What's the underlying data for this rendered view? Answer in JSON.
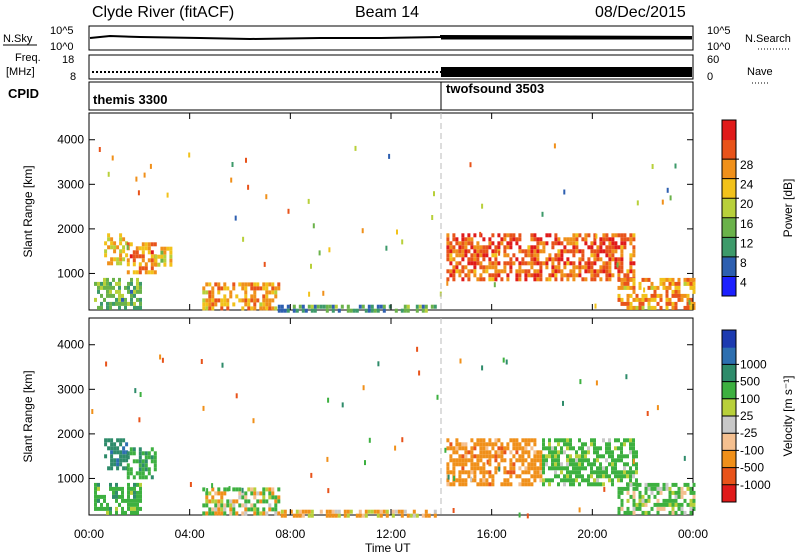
{
  "header": {
    "station": "Clyde River (fitACF)",
    "beam": "Beam 14",
    "date": "08/Dec/2015"
  },
  "status_panels": {
    "nsky_label": "N.Sky",
    "nsearch_label": "N.Search",
    "noise_ticks": [
      "10^5",
      "10^0"
    ],
    "freq_label": "Freq.",
    "freq_unit": "[MHz]",
    "freq_ticks": [
      "18",
      "8"
    ],
    "nave_label": "Nave",
    "nave_ticks": [
      "60",
      "0"
    ],
    "cpid_label": "CPID",
    "cpid_segments": [
      {
        "name": "themis 3300",
        "start_hour": 0,
        "end_hour": 14.0
      },
      {
        "name": "twofsound 3503",
        "start_hour": 14.0,
        "end_hour": 24
      }
    ]
  },
  "colors": {
    "power_scale": [
      "#1c20ff",
      "#2d5fb0",
      "#3d9a6a",
      "#6ab24a",
      "#b8d03a",
      "#f2c21a",
      "#f0901a",
      "#e8531a",
      "#e01a1a"
    ],
    "velocity_scale": [
      "#e01a1a",
      "#e8531a",
      "#f0901a",
      "#f5c090",
      "#c8c8c8",
      "#b8d03a",
      "#3db040",
      "#2e8b6a",
      "#2d6fb0",
      "#1c3ab0"
    ]
  },
  "chart_data": [
    {
      "type": "heatmap",
      "title": "Power",
      "ylabel": "Slant Range [km]",
      "colorbar_label": "Power [dB]",
      "colorbar_ticks": [
        "4",
        "8",
        "12",
        "16",
        "20",
        "24",
        "28"
      ],
      "colorbar_range": [
        0,
        32
      ],
      "y_ticks": [
        "1000",
        "2000",
        "3000",
        "4000"
      ],
      "ylim": [
        180,
        4600
      ],
      "x_ticks": [
        "00:00",
        "04:00",
        "08:00",
        "12:00",
        "16:00",
        "20:00",
        "00:00"
      ],
      "xlim": [
        0,
        24
      ],
      "regions": [
        {
          "t": [
            0.2,
            2.0
          ],
          "r": [
            200,
            900
          ],
          "v": 12
        },
        {
          "t": [
            0.6,
            1.5
          ],
          "r": [
            1200,
            1900
          ],
          "v": 20
        },
        {
          "t": [
            1.5,
            2.6
          ],
          "r": [
            1000,
            1700
          ],
          "v": 24
        },
        {
          "t": [
            2.6,
            3.3
          ],
          "r": [
            1200,
            1600
          ],
          "v": 18
        },
        {
          "t": [
            4.5,
            7.5
          ],
          "r": [
            200,
            800
          ],
          "v": 22
        },
        {
          "t": [
            7.5,
            13.8
          ],
          "r": [
            200,
            300
          ],
          "v": 10
        },
        {
          "t": [
            14.2,
            21.7
          ],
          "r": [
            900,
            1900
          ],
          "v": 26
        },
        {
          "t": [
            21.0,
            24.0
          ],
          "r": [
            200,
            900
          ],
          "v": 22
        }
      ]
    },
    {
      "type": "heatmap",
      "title": "Velocity",
      "ylabel": "Slant Range [km]",
      "xlabel": "Time UT",
      "colorbar_label": "Velocity [m s⁻¹]",
      "colorbar_ticks": [
        "-1000",
        "-500",
        "-100",
        "-25",
        "25",
        "100",
        "500",
        "1000"
      ],
      "colorbar_range": [
        -1250,
        1250
      ],
      "y_ticks": [
        "1000",
        "2000",
        "3000",
        "4000"
      ],
      "ylim": [
        180,
        4600
      ],
      "x_ticks": [
        "00:00",
        "04:00",
        "08:00",
        "12:00",
        "16:00",
        "20:00",
        "00:00"
      ],
      "xlim": [
        0,
        24
      ],
      "regions": [
        {
          "t": [
            0.2,
            2.0
          ],
          "r": [
            200,
            900
          ],
          "v": 300
        },
        {
          "t": [
            0.6,
            1.5
          ],
          "r": [
            1200,
            1900
          ],
          "v": 800
        },
        {
          "t": [
            1.5,
            2.6
          ],
          "r": [
            1000,
            1700
          ],
          "v": 400
        },
        {
          "t": [
            4.5,
            7.5
          ],
          "r": [
            200,
            800
          ],
          "v": 50
        },
        {
          "t": [
            7.5,
            13.8
          ],
          "r": [
            200,
            300
          ],
          "v": -150
        },
        {
          "t": [
            14.2,
            18.0
          ],
          "r": [
            900,
            1900
          ],
          "v": -300
        },
        {
          "t": [
            18.0,
            21.7
          ],
          "r": [
            900,
            1900
          ],
          "v": 250
        },
        {
          "t": [
            21.0,
            24.0
          ],
          "r": [
            200,
            900
          ],
          "v": 150
        }
      ]
    }
  ]
}
